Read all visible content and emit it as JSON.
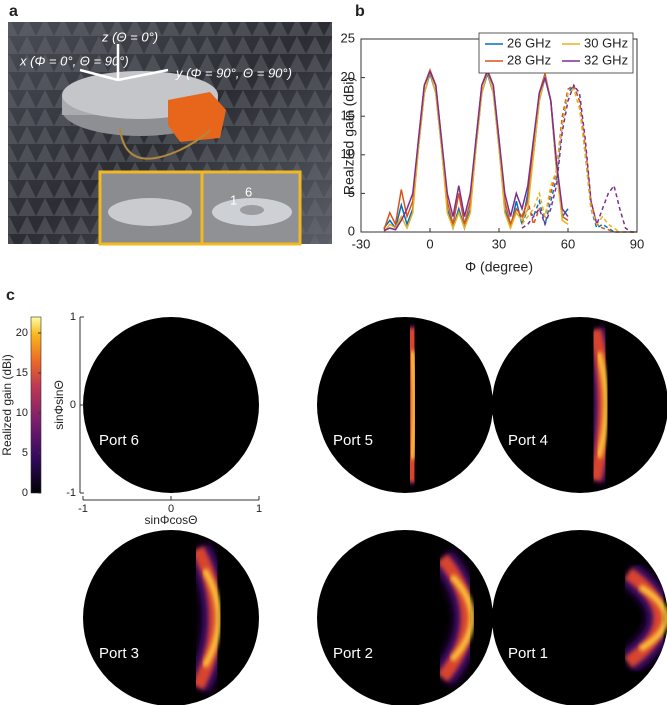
{
  "panel_labels": [
    "a",
    "b",
    "c"
  ],
  "photo": {
    "z_axis": "z (Θ = 0°)",
    "x_axis": "x (Φ = 0°, Θ = 90°)",
    "y_axis": "y (Φ = 90°, Θ = 90°)",
    "inset_labels": [
      "6",
      "1"
    ]
  },
  "chart_data": {
    "type": "line",
    "xlabel": "Φ (degree)",
    "ylabel": "Realzied gain (dBi)",
    "x": [
      -30,
      -27.5,
      -25,
      -22.5,
      -20,
      -17.5,
      -15,
      -12.5,
      -10,
      -7.5,
      -5,
      -2.5,
      0,
      2.5,
      5,
      7.5,
      10,
      12.5,
      15,
      17.5,
      20,
      22.5,
      25,
      27.5,
      30,
      32.5,
      35,
      37.5,
      40,
      42.5,
      45,
      47.5,
      50,
      52.5,
      55,
      57.5,
      60,
      62.5,
      65,
      67.5,
      70,
      72.5,
      75,
      77.5,
      80,
      82.5,
      85,
      87.5,
      90
    ],
    "xlim": [
      -30,
      90
    ],
    "xticks": [
      -30,
      0,
      30,
      60,
      90
    ],
    "ylim": [
      0,
      25
    ],
    "yticks": [
      0,
      5,
      10,
      15,
      20,
      25
    ],
    "legend": "upper right",
    "series": [
      {
        "name": "26 GHz",
        "color": "#0072bd",
        "values": [
          null,
          null,
          null,
          null,
          0.5,
          1.5,
          0.5,
          3.5,
          1,
          3,
          11,
          18,
          20.5,
          18,
          11,
          3,
          0.5,
          3,
          0.5,
          3,
          11,
          18,
          20.5,
          18,
          11,
          3,
          0.5,
          4,
          1,
          5,
          10,
          17,
          20,
          17,
          8,
          2,
          3,
          null,
          null,
          null,
          null,
          null,
          null,
          null,
          null,
          null,
          null,
          null,
          null
        ],
        "dashed_values": [
          null,
          null,
          null,
          null,
          null,
          null,
          null,
          null,
          null,
          null,
          null,
          null,
          null,
          null,
          null,
          null,
          null,
          null,
          null,
          null,
          null,
          null,
          null,
          null,
          null,
          null,
          null,
          null,
          1,
          3,
          2,
          4,
          1,
          4,
          7,
          14,
          18,
          19,
          17,
          10,
          3,
          0.5,
          1,
          0.5,
          0,
          0,
          0,
          0,
          0
        ]
      },
      {
        "name": "28 GHz",
        "color": "#d95319",
        "values": [
          null,
          null,
          null,
          null,
          0.3,
          2.5,
          1,
          5.5,
          2,
          4,
          12,
          19,
          21,
          19,
          12,
          4,
          1,
          5,
          1,
          4,
          12,
          19,
          21,
          19,
          12,
          4,
          1,
          3,
          2,
          4,
          11,
          18,
          20.5,
          17,
          9,
          2,
          1.5,
          null,
          null,
          null,
          null,
          null,
          null,
          null,
          null,
          null,
          null,
          null,
          null
        ],
        "dashed_values": [
          null,
          null,
          null,
          null,
          null,
          null,
          null,
          null,
          null,
          null,
          null,
          null,
          null,
          null,
          null,
          null,
          null,
          null,
          null,
          null,
          null,
          null,
          null,
          null,
          null,
          null,
          null,
          null,
          2,
          4,
          1,
          3,
          2,
          5,
          8,
          15,
          18.5,
          19,
          17,
          11,
          4,
          1,
          0.5,
          0.3,
          0,
          0,
          0,
          0,
          0
        ]
      },
      {
        "name": "30 GHz",
        "color": "#edb120",
        "values": [
          null,
          null,
          null,
          null,
          0,
          1,
          0.5,
          2,
          0.5,
          2.5,
          11,
          18,
          20.8,
          18,
          11,
          2.5,
          0.5,
          2.5,
          0.5,
          2.5,
          11,
          18,
          20.8,
          18,
          11,
          2.5,
          0.5,
          2.5,
          1.5,
          3,
          10,
          17,
          20.2,
          17,
          8,
          1.5,
          1,
          null,
          null,
          null,
          null,
          null,
          null,
          null,
          null,
          null,
          null,
          null,
          null
        ],
        "dashed_values": [
          null,
          null,
          null,
          null,
          null,
          null,
          null,
          null,
          null,
          null,
          null,
          null,
          null,
          null,
          null,
          null,
          null,
          null,
          null,
          null,
          null,
          null,
          null,
          null,
          null,
          null,
          null,
          null,
          1,
          2,
          3,
          5,
          2,
          6,
          8,
          14,
          18,
          18.5,
          16,
          10,
          3,
          1,
          2,
          1,
          0.5,
          0,
          0,
          0,
          0
        ]
      },
      {
        "name": "32 GHz",
        "color": "#7e2f8e",
        "values": [
          null,
          null,
          null,
          null,
          0.2,
          0.5,
          0.3,
          1.5,
          3,
          5,
          12,
          19,
          20.8,
          19,
          12,
          5,
          2,
          6,
          2,
          5,
          12,
          19,
          20.8,
          19,
          12,
          5,
          2,
          5,
          3,
          6,
          12,
          18,
          20,
          17,
          9,
          3,
          2,
          null,
          null,
          null,
          null,
          null,
          null,
          null,
          null,
          null,
          null,
          null,
          null
        ],
        "dashed_values": [
          null,
          null,
          null,
          null,
          null,
          null,
          null,
          null,
          null,
          null,
          null,
          null,
          null,
          null,
          null,
          null,
          null,
          null,
          null,
          null,
          null,
          null,
          null,
          null,
          null,
          null,
          null,
          null,
          0.5,
          1,
          2,
          3,
          1,
          3,
          6,
          13,
          17,
          19,
          18,
          12,
          4,
          1,
          3,
          5,
          6,
          3,
          0.5,
          0,
          0
        ]
      }
    ]
  },
  "colorbar": {
    "label": "Realized gain (dBi)",
    "lim": [
      0,
      22
    ],
    "ticks": [
      0,
      5,
      10,
      15,
      20
    ]
  },
  "patterns": {
    "xlabel": "sinΦcosΘ",
    "ylabel": "sinΦsinΘ",
    "lim": [
      -1,
      1
    ],
    "xticks": [
      -1,
      0,
      1
    ],
    "yticks": [
      -1,
      0,
      1
    ],
    "ports": [
      "Port 6",
      "Port 5",
      "Port 4",
      "Port 3",
      "Port 2",
      "Port 1"
    ]
  }
}
